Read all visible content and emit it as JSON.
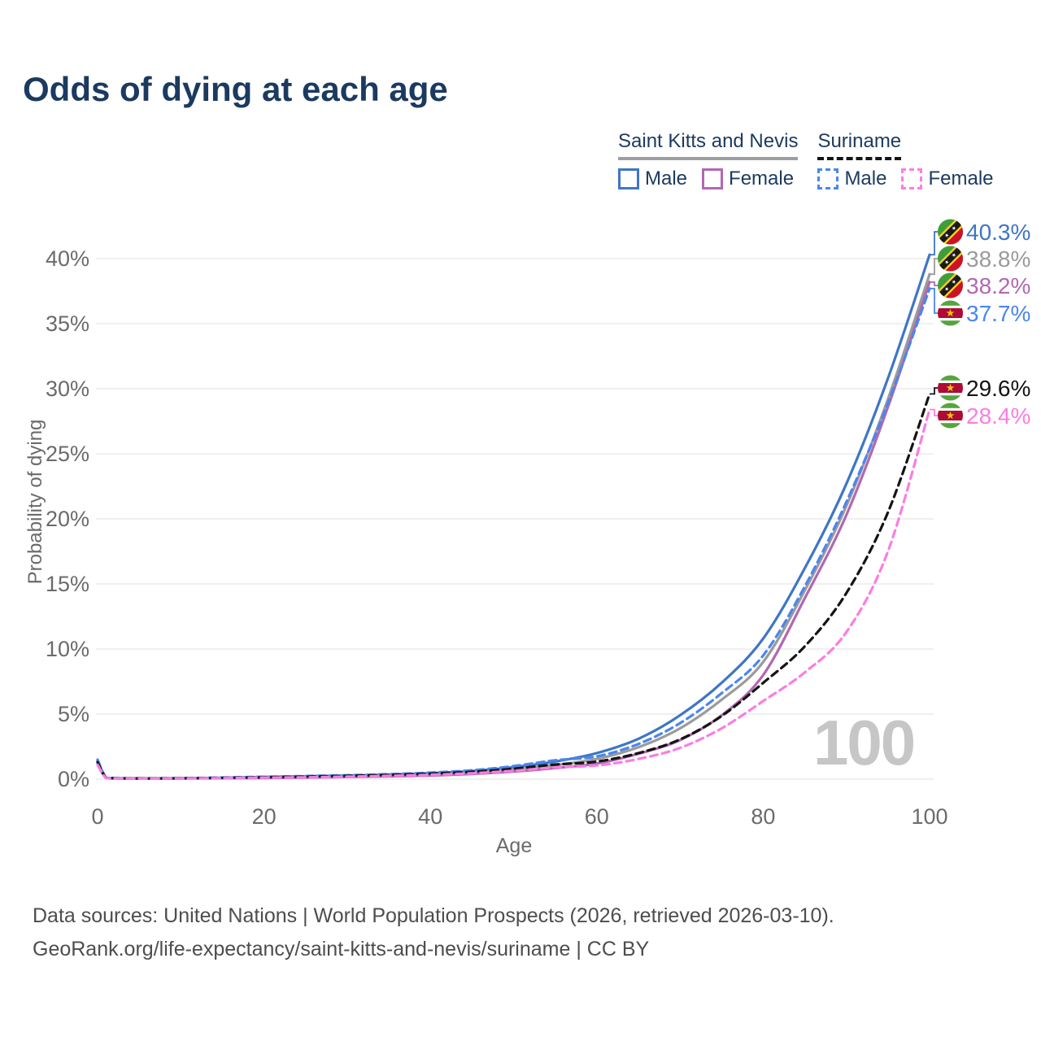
{
  "title": "Odds of dying at each age",
  "watermark": "100",
  "legend": {
    "groups": [
      {
        "label": "Saint Kitts and Nevis",
        "line_style": "solid",
        "underline_color": "#9e9e9e",
        "items": [
          {
            "label": "Male",
            "color": "#3e76c5",
            "dashed": false
          },
          {
            "label": "Female",
            "color": "#b168b1",
            "dashed": false
          }
        ]
      },
      {
        "label": "Suriname",
        "line_style": "dashed",
        "underline_color": "#141414",
        "items": [
          {
            "label": "Male",
            "color": "#4a86ee",
            "dashed": true
          },
          {
            "label": "Female",
            "color": "#fb7de2",
            "dashed": true
          }
        ]
      }
    ]
  },
  "footer": {
    "line1": "Data sources: United Nations | World Population Prospects (2026, retrieved 2026-03-10).",
    "line2": "GeoRank.org/life-expectancy/saint-kitts-and-nevis/suriname | CC BY"
  },
  "chart_data": {
    "type": "line",
    "title": "Odds of dying at each age",
    "xlabel": "Age",
    "ylabel": "Probability of dying",
    "xlim": [
      0,
      100
    ],
    "ylim_percent": [
      0,
      42
    ],
    "grid": "horizontal",
    "x_ticks": [
      0,
      20,
      40,
      60,
      80,
      100
    ],
    "y_ticks_percent": [
      0,
      5,
      10,
      15,
      20,
      25,
      30,
      35,
      40
    ],
    "y_tick_labels": [
      "0%",
      "5%",
      "10%",
      "15%",
      "20%",
      "25%",
      "30%",
      "35%",
      "40%"
    ],
    "legend_position": "top-right",
    "ages": [
      0,
      1,
      2,
      5,
      10,
      15,
      20,
      25,
      30,
      35,
      40,
      45,
      50,
      55,
      60,
      65,
      70,
      75,
      80,
      85,
      90,
      95,
      100
    ],
    "series": [
      {
        "name": "Saint Kitts and Nevis Male",
        "country": "skn",
        "sex": "male",
        "color": "#3e76c5",
        "dashed": false,
        "end_label": "40.3%",
        "end_value_percent": 40.3,
        "values_percent": [
          1.4,
          0.12,
          0.08,
          0.06,
          0.07,
          0.1,
          0.16,
          0.21,
          0.27,
          0.34,
          0.45,
          0.62,
          0.92,
          1.35,
          2.0,
          3.1,
          4.9,
          7.4,
          10.8,
          16.2,
          22.7,
          30.8,
          40.3
        ]
      },
      {
        "name": "Saint Kitts and Nevis All",
        "country": "skn",
        "sex": "both",
        "color": "#9b9b9b",
        "dashed": false,
        "end_label": "38.8%",
        "end_value_percent": 38.8,
        "values_percent": [
          1.25,
          0.11,
          0.07,
          0.05,
          0.06,
          0.09,
          0.13,
          0.17,
          0.22,
          0.28,
          0.37,
          0.5,
          0.74,
          1.08,
          1.55,
          2.45,
          3.9,
          6.1,
          9.0,
          14.5,
          21.0,
          29.2,
          38.8
        ]
      },
      {
        "name": "Saint Kitts and Nevis Female",
        "country": "skn",
        "sex": "female",
        "color": "#b168b1",
        "dashed": false,
        "end_label": "38.2%",
        "end_value_percent": 38.2,
        "values_percent": [
          1.1,
          0.1,
          0.06,
          0.04,
          0.05,
          0.07,
          0.09,
          0.12,
          0.16,
          0.21,
          0.28,
          0.4,
          0.58,
          0.85,
          1.2,
          1.95,
          3.0,
          4.9,
          8.0,
          13.9,
          20.3,
          28.6,
          38.2
        ]
      },
      {
        "name": "Suriname Male",
        "country": "sur",
        "sex": "male",
        "color": "#4a86ee",
        "dashed": true,
        "end_label": "37.7%",
        "end_value_percent": 37.7,
        "values_percent": [
          1.5,
          0.13,
          0.08,
          0.06,
          0.07,
          0.12,
          0.18,
          0.24,
          0.3,
          0.38,
          0.5,
          0.68,
          1.0,
          1.45,
          1.75,
          2.7,
          4.3,
          6.6,
          9.5,
          14.8,
          21.3,
          28.9,
          37.7
        ]
      },
      {
        "name": "Suriname All",
        "country": "sur",
        "sex": "both",
        "color": "#141414",
        "dashed": true,
        "end_label": "29.6%",
        "end_value_percent": 29.6,
        "values_percent": [
          1.3,
          0.11,
          0.07,
          0.05,
          0.06,
          0.1,
          0.14,
          0.19,
          0.25,
          0.32,
          0.42,
          0.56,
          0.8,
          1.12,
          1.35,
          2.0,
          3.05,
          4.85,
          7.4,
          10.2,
          14.3,
          20.5,
          29.6
        ]
      },
      {
        "name": "Suriname Female",
        "country": "sur",
        "sex": "female",
        "color": "#fb7de2",
        "dashed": true,
        "end_label": "28.4%",
        "end_value_percent": 28.4,
        "values_percent": [
          1.1,
          0.09,
          0.06,
          0.04,
          0.05,
          0.08,
          0.11,
          0.14,
          0.19,
          0.25,
          0.33,
          0.45,
          0.64,
          0.9,
          1.05,
          1.55,
          2.4,
          3.9,
          6.0,
          8.2,
          11.3,
          17.5,
          28.4
        ]
      }
    ]
  }
}
